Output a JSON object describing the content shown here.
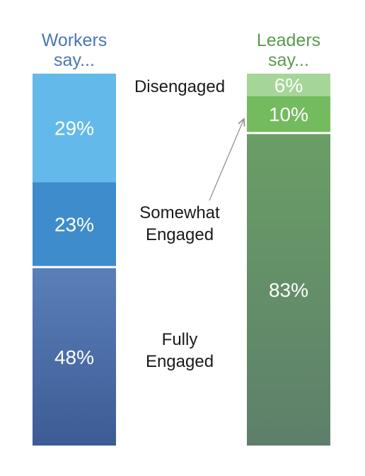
{
  "chart_data": {
    "type": "bar",
    "stacked": true,
    "title": "",
    "xlabel": "",
    "ylabel": "",
    "ylim": [
      0,
      100
    ],
    "grid": false,
    "legend": "none",
    "categories": [
      "Workers say...",
      "Leaders say..."
    ],
    "series": [
      {
        "name": "Fully Engaged",
        "values": [
          48,
          83
        ],
        "labels": [
          "48%",
          "83%"
        ]
      },
      {
        "name": "Somewhat Engaged",
        "values": [
          23,
          10
        ],
        "labels": [
          "23%",
          "10%"
        ]
      },
      {
        "name": "Disengaged",
        "values": [
          29,
          6
        ],
        "labels": [
          "29%",
          "6%"
        ]
      }
    ],
    "category_labels": {
      "fully": "Fully Engaged",
      "somewhat": "Somewhat Engaged",
      "disengaged": "Disengaged"
    },
    "colors": {
      "workers_heading": "#4a76b4",
      "leaders_heading": "#5b9a4c",
      "workers_disengaged": "#63b9ea",
      "workers_somewhat": "#3e8ccc",
      "workers_fully_top": "#5a7fb8",
      "workers_fully_bottom": "#3d5b95",
      "leaders_disengaged": "#a5d597",
      "leaders_somewhat": "#73bb5e",
      "leaders_fully_top": "#6a9e66",
      "leaders_fully_bottom": "#5e7f6b",
      "arrow": "#8a8a8a"
    }
  }
}
